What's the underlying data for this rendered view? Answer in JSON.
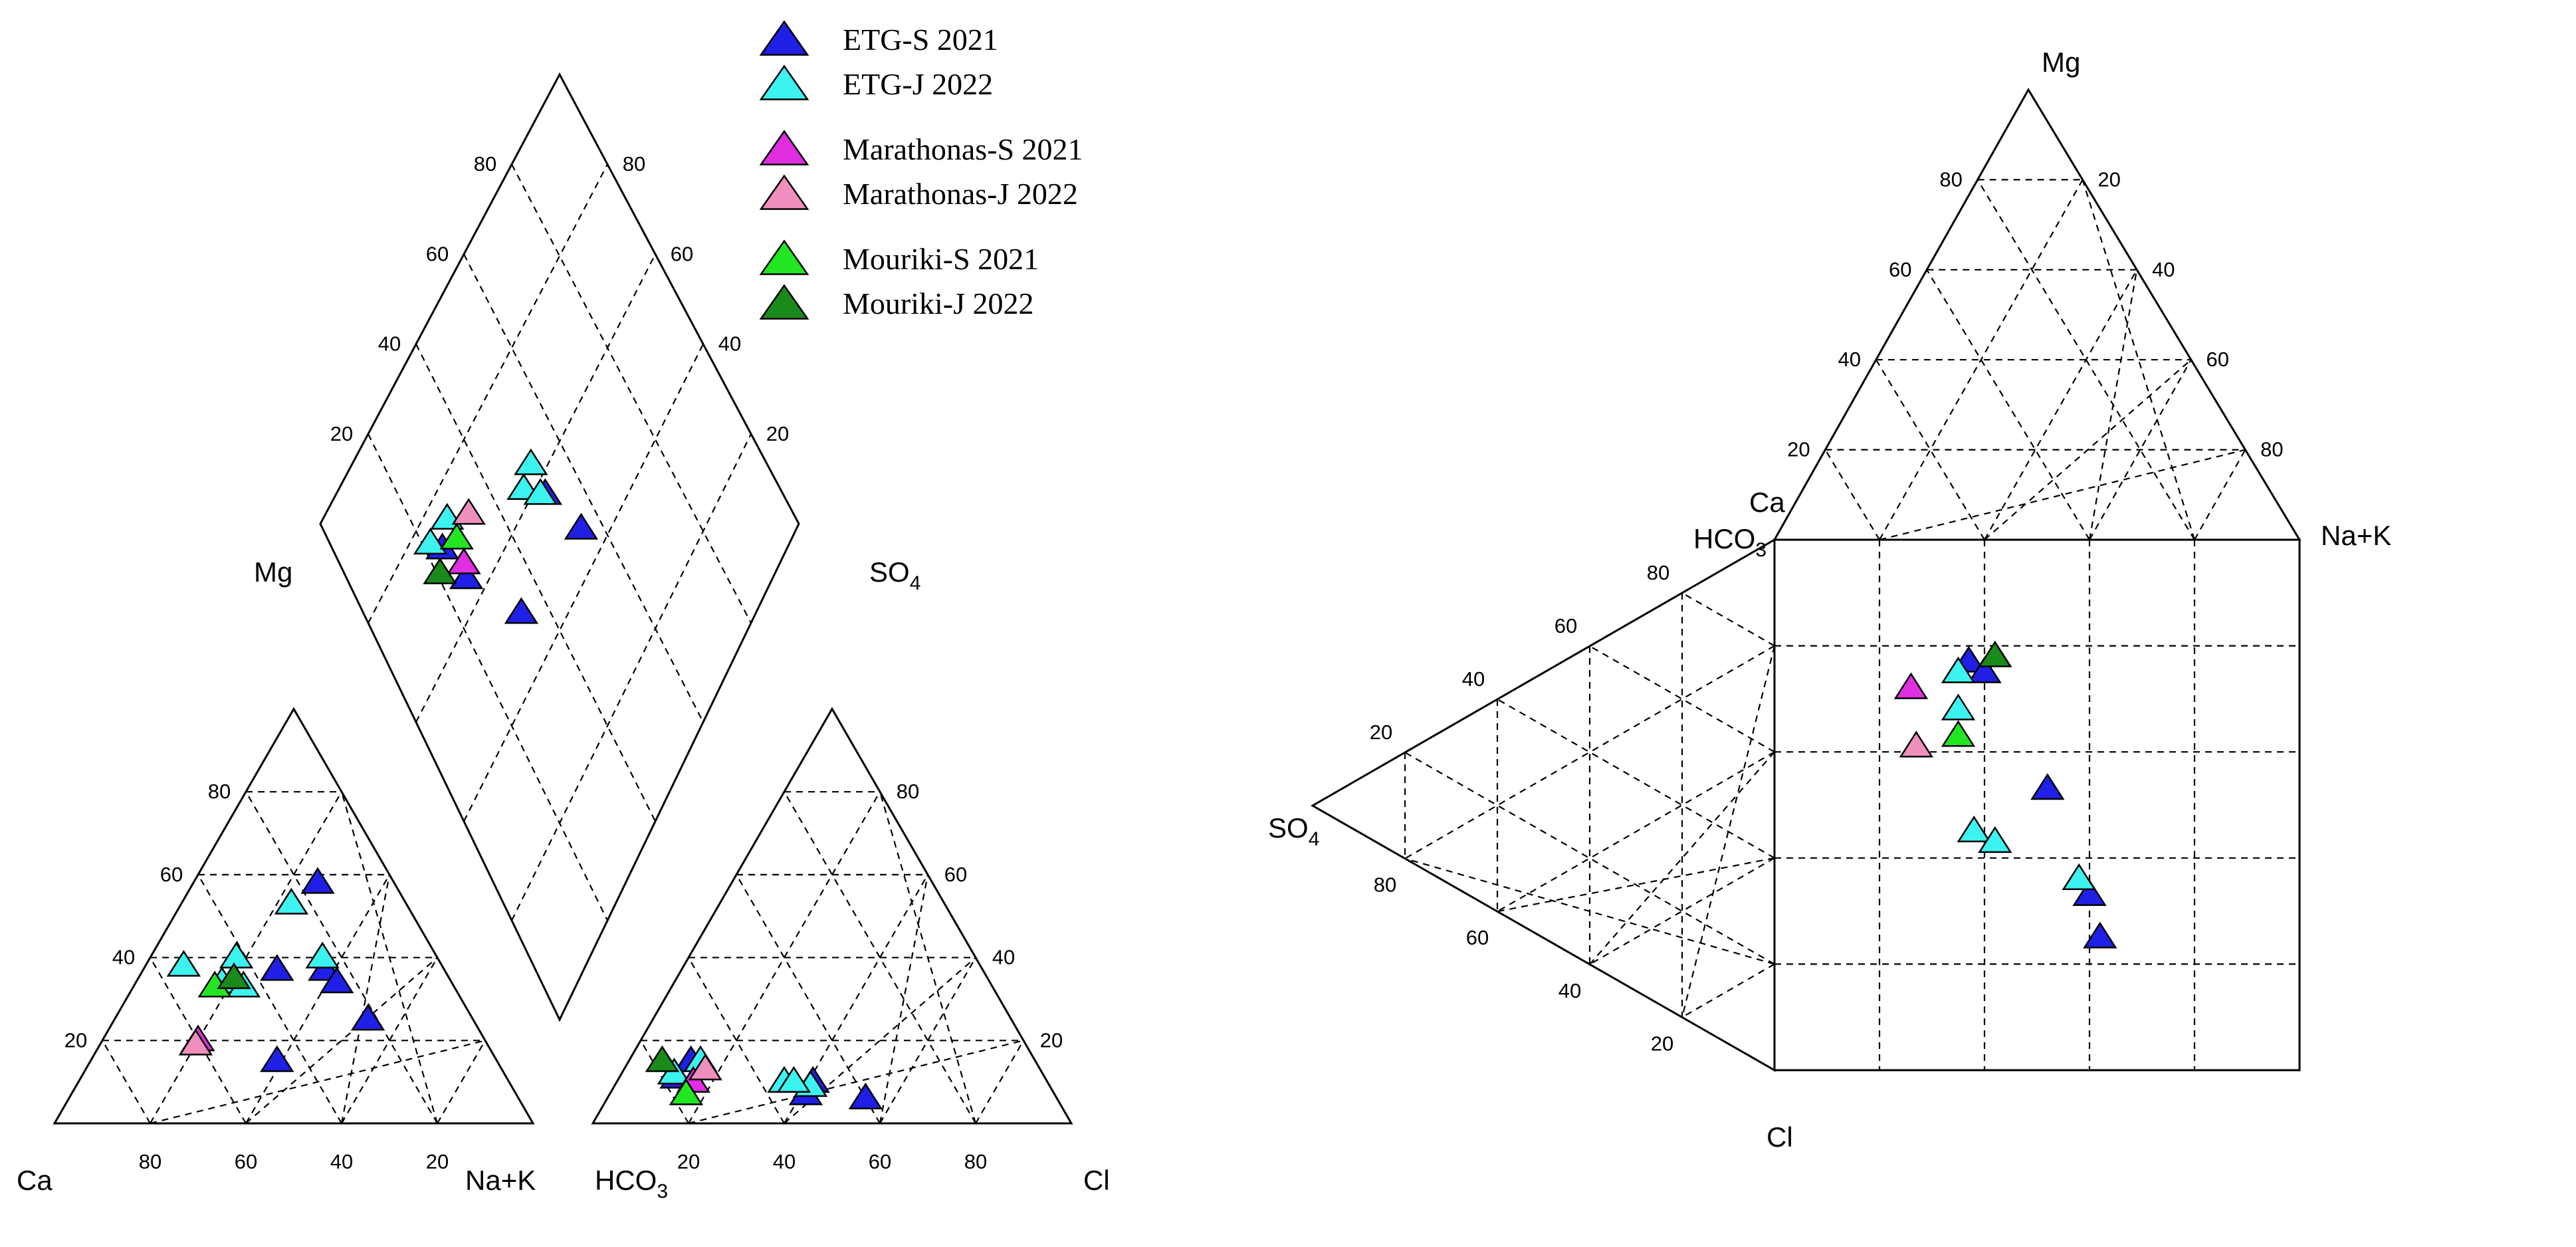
{
  "legend": [
    {
      "name": "ETG-S 2021",
      "color": "#1f1fe6"
    },
    {
      "name": "ETG-J 2022",
      "color": "#3cf3f0"
    },
    {
      "name": "Marathonas-S 2021",
      "color": "#e02ee0"
    },
    {
      "name": "Marathonas-J 2022",
      "color": "#ee8fbd"
    },
    {
      "name": "Mouriki-S 2021",
      "color": "#22e622"
    },
    {
      "name": "Mouriki-J 2022",
      "color": "#1a8a1a"
    }
  ],
  "piper": {
    "cation_labels": {
      "mg": "Mg",
      "ca": "Ca",
      "na_k": "Na+K"
    },
    "anion_labels": {
      "so4": "SO",
      "so4_sub": "4",
      "hco3": "HCO",
      "hco3_sub": "3",
      "cl": "Cl"
    },
    "ticks": [
      "20",
      "40",
      "60",
      "80"
    ]
  },
  "durov": {
    "labels": {
      "mg": "Mg",
      "ca": "Ca",
      "na_k": "Na+K",
      "hco3": "HCO",
      "hco3_sub": "3",
      "so4": "SO",
      "so4_sub": "4",
      "cl": "Cl"
    },
    "ticks": [
      "20",
      "40",
      "60",
      "80"
    ]
  },
  "chart_data": [
    {
      "type": "scatter",
      "chart": "piper-cation-triangle",
      "axes": [
        "Ca (%)",
        "Mg (%)",
        "Na+K (%)"
      ],
      "series": [
        {
          "name": "ETG-S 2021",
          "points": [
            {
              "ca": 16,
              "mg": 58,
              "na_k": 26
            },
            {
              "ca": 46,
              "mg": 15,
              "na_k": 39
            },
            {
              "ca": 35,
              "mg": 37,
              "na_k": 28
            },
            {
              "ca": 22,
              "mg": 25,
              "na_k": 53
            },
            {
              "ca": 25,
              "mg": 37,
              "na_k": 38
            },
            {
              "ca": 24,
              "mg": 34,
              "na_k": 42
            }
          ]
        },
        {
          "name": "ETG-J 2022",
          "points": [
            {
              "ca": 24,
              "mg": 53,
              "na_k": 23
            },
            {
              "ca": 42,
              "mg": 40,
              "na_k": 18
            },
            {
              "ca": 54,
              "mg": 38,
              "na_k": 8
            },
            {
              "ca": 48,
              "mg": 34,
              "na_k": 18
            },
            {
              "ca": 44,
              "mg": 33,
              "na_k": 23
            },
            {
              "ca": 24,
              "mg": 40,
              "na_k": 36
            }
          ]
        },
        {
          "name": "Marathonas-S 2021",
          "points": [
            {
              "ca": 60,
              "mg": 20,
              "na_k": 20
            }
          ]
        },
        {
          "name": "Marathonas-J 2022",
          "points": [
            {
              "ca": 61,
              "mg": 19,
              "na_k": 20
            }
          ]
        },
        {
          "name": "Mouriki-S 2021",
          "points": [
            {
              "ca": 50,
              "mg": 33,
              "na_k": 17
            }
          ]
        },
        {
          "name": "Mouriki-J 2022",
          "points": [
            {
              "ca": 45,
              "mg": 35,
              "na_k": 20
            }
          ]
        }
      ]
    },
    {
      "type": "scatter",
      "chart": "piper-anion-triangle",
      "axes": [
        "HCO3 (%)",
        "SO4 (%)",
        "Cl (%)"
      ],
      "series": [
        {
          "name": "ETG-S 2021",
          "points": [
            {
              "hco3": 72,
              "so4": 15,
              "cl": 13
            },
            {
              "hco3": 77,
              "so4": 11,
              "cl": 12
            },
            {
              "hco3": 52,
              "so4": 7,
              "cl": 41
            },
            {
              "hco3": 49,
              "so4": 10,
              "cl": 41
            },
            {
              "hco3": 40,
              "so4": 6,
              "cl": 54
            }
          ]
        },
        {
          "name": "ETG-J 2022",
          "points": [
            {
              "hco3": 70,
              "so4": 15,
              "cl": 15
            },
            {
              "hco3": 77,
              "so4": 12,
              "cl": 11
            },
            {
              "hco3": 55,
              "so4": 10,
              "cl": 35
            },
            {
              "hco3": 50,
              "so4": 9,
              "cl": 41
            },
            {
              "hco3": 53,
              "so4": 10,
              "cl": 37
            }
          ]
        },
        {
          "name": "Marathonas-S 2021",
          "points": [
            {
              "hco3": 74,
              "so4": 10,
              "cl": 16
            }
          ]
        },
        {
          "name": "Marathonas-J 2022",
          "points": [
            {
              "hco3": 70,
              "so4": 13,
              "cl": 17
            }
          ]
        },
        {
          "name": "Mouriki-S 2021",
          "points": [
            {
              "hco3": 77,
              "so4": 7,
              "cl": 16
            }
          ]
        },
        {
          "name": "Mouriki-J 2022",
          "points": [
            {
              "hco3": 78,
              "so4": 15,
              "cl": 7
            }
          ]
        }
      ]
    },
    {
      "type": "scatter",
      "chart": "piper-central-diamond",
      "axes": [
        "SO4+Cl (%)",
        "Ca+Mg (%)"
      ],
      "series": [
        {
          "name": "ETG-S 2021",
          "points": [
            {
              "so4_cl": 25,
              "ca_mg": 64
            },
            {
              "so4_cl": 23,
              "ca_mg": 72
            },
            {
              "so4_cl": 50,
              "ca_mg": 56
            },
            {
              "so4_cl": 54,
              "ca_mg": 45
            },
            {
              "so4_cl": 33,
              "ca_mg": 49
            }
          ]
        },
        {
          "name": "ETG-J 2022",
          "points": [
            {
              "so4_cl": 21,
              "ca_mg": 75
            },
            {
              "so4_cl": 27,
              "ca_mg": 74
            },
            {
              "so4_cl": 46,
              "ca_mg": 61
            },
            {
              "so4_cl": 50,
              "ca_mg": 62
            },
            {
              "so4_cl": 49,
              "ca_mg": 57
            }
          ]
        },
        {
          "name": "Marathonas-S 2021",
          "points": [
            {
              "so4_cl": 26,
              "ca_mg": 66
            }
          ]
        },
        {
          "name": "Marathonas-J 2022",
          "points": [
            {
              "so4_cl": 32,
              "ca_mg": 70
            }
          ]
        },
        {
          "name": "Mouriki-S 2021",
          "points": [
            {
              "so4_cl": 27,
              "ca_mg": 70
            }
          ]
        },
        {
          "name": "Mouriki-J 2022",
          "points": [
            {
              "so4_cl": 20,
              "ca_mg": 70
            }
          ]
        }
      ]
    },
    {
      "type": "scatter",
      "chart": "durov-square",
      "axes": [
        "Na+K (%)",
        "HCO3 (%)"
      ],
      "series": [
        {
          "name": "ETG-S 2021",
          "points": [
            {
              "nak": 37,
              "hco3": 77
            },
            {
              "nak": 40,
              "hco3": 75
            },
            {
              "nak": 52,
              "hco3": 53
            },
            {
              "nak": 60,
              "hco3": 33
            },
            {
              "nak": 62,
              "hco3": 25
            }
          ]
        },
        {
          "name": "ETG-J 2022",
          "points": [
            {
              "nak": 35,
              "hco3": 75
            },
            {
              "nak": 35,
              "hco3": 68
            },
            {
              "nak": 38,
              "hco3": 45
            },
            {
              "nak": 42,
              "hco3": 43
            },
            {
              "nak": 58,
              "hco3": 36
            }
          ]
        },
        {
          "name": "Marathonas-S 2021",
          "points": [
            {
              "nak": 26,
              "hco3": 72
            }
          ]
        },
        {
          "name": "Marathonas-J 2022",
          "points": [
            {
              "nak": 27,
              "hco3": 61
            }
          ]
        },
        {
          "name": "Mouriki-S 2021",
          "points": [
            {
              "nak": 35,
              "hco3": 63
            }
          ]
        },
        {
          "name": "Mouriki-J 2022",
          "points": [
            {
              "nak": 42,
              "hco3": 78
            }
          ]
        }
      ]
    }
  ]
}
